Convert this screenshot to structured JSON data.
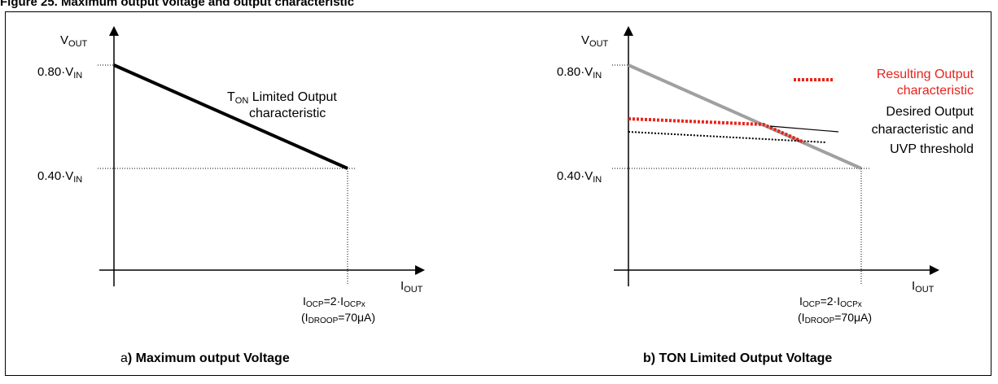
{
  "figure_title": "Figure 25.  Maximum output voltage and output characteristic",
  "panel_a": {
    "y_axis_label": {
      "main": "V",
      "sub": "OUT"
    },
    "x_axis_label": {
      "main": "I",
      "sub": "OUT"
    },
    "y_tick_high": {
      "prefix": "0.80·V",
      "sub": "IN"
    },
    "y_tick_low": {
      "prefix": "0.40·V",
      "sub": "IN"
    },
    "x_tick_line1": {
      "a": "I",
      "a_sub": "OCP",
      "b": "=2·I",
      "b_sub": "OCPx"
    },
    "x_tick_line2": {
      "a": "(I",
      "a_sub": "DROOP",
      "b": "=70μA)"
    },
    "curve_label_line1": {
      "main": "T",
      "sub": "ON",
      "rest": " Limited Output"
    },
    "curve_label_line2": "characteristic",
    "caption_letter": "a",
    "caption_text": ")  Maximum output Voltage"
  },
  "panel_b": {
    "y_axis_label": {
      "main": "V",
      "sub": "OUT"
    },
    "x_axis_label": {
      "main": "I",
      "sub": "OUT"
    },
    "y_tick_high": {
      "prefix": "0.80·V",
      "sub": "IN"
    },
    "y_tick_low": {
      "prefix": "0.40·V",
      "sub": "IN"
    },
    "x_tick_line1": {
      "a": "I",
      "a_sub": "OCP",
      "b": "=2·I",
      "b_sub": "OCPx"
    },
    "x_tick_line2": {
      "a": "(I",
      "a_sub": "DROOP",
      "b": "=70μA)"
    },
    "legend_resulting_line1": "Resulting Output",
    "legend_resulting_line2": "characteristic",
    "legend_desired_line1": "Desired Output",
    "legend_desired_line2": "characteristic and",
    "legend_desired_line3": "UVP threshold",
    "caption_text": "b)   TON Limited Output Voltage"
  },
  "colors": {
    "axis": "#000000",
    "ton_line": "#000000",
    "ton_line_grey": "#a0a0a0",
    "resulting": "#e8231a",
    "desired": "#000000"
  }
}
